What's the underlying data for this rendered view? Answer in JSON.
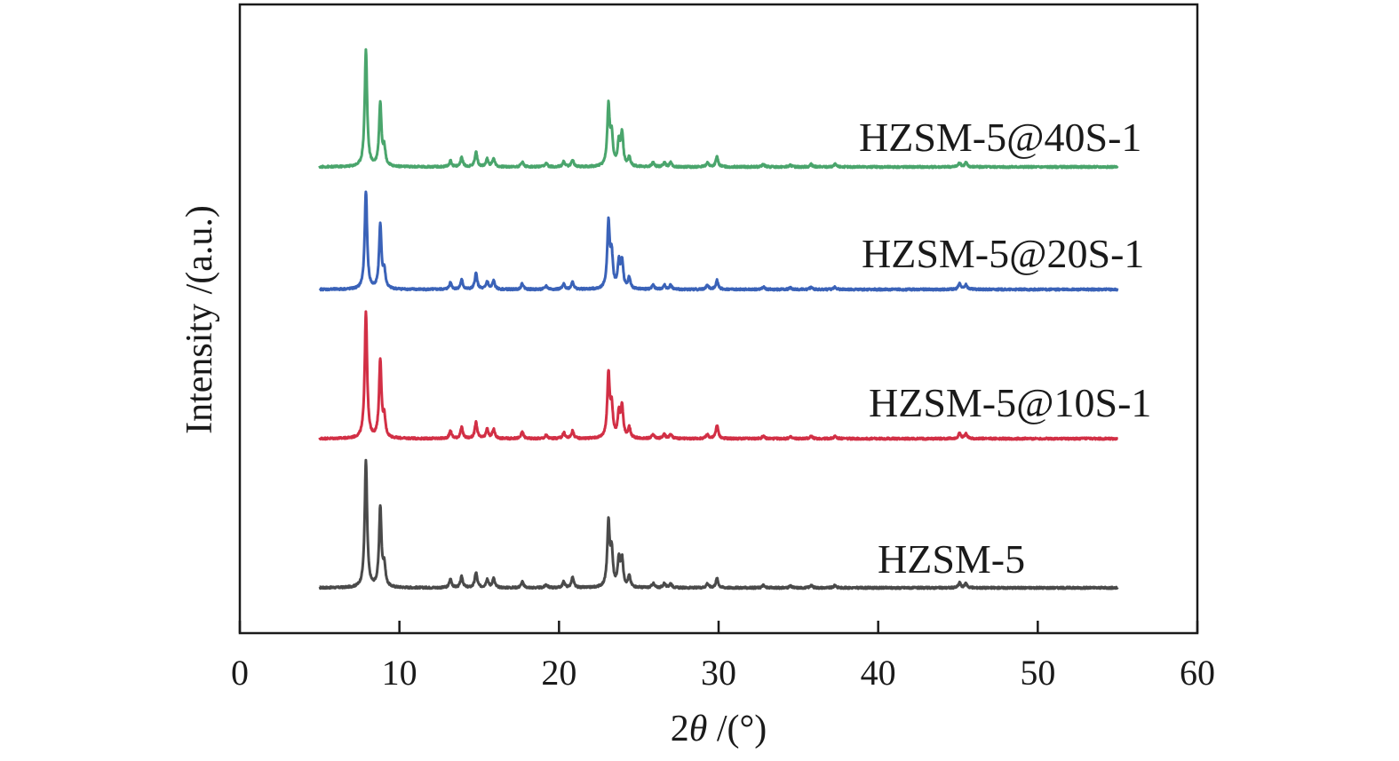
{
  "chart_data": {
    "type": "line",
    "title": "",
    "xlabel": "2θ /(°)",
    "xlabel_parts": {
      "prefix": "2",
      "symbol": "θ",
      "suffix": " /(°)"
    },
    "ylabel": "Intensity /(a.u.)",
    "xlim": [
      0,
      60
    ],
    "x_ticks": [
      0,
      10,
      20,
      30,
      40,
      50,
      60
    ],
    "x_tick_labels": [
      "0",
      "10",
      "20",
      "30",
      "40",
      "50",
      "60"
    ],
    "y_ticks": [],
    "x_range_data": [
      5,
      55
    ],
    "grid": false,
    "legend": "inline labels placed right of each curve",
    "series": [
      {
        "name": "HZSM-5",
        "color": "#4a4a4a",
        "offset": 0,
        "scale": 1.0,
        "peaks": [
          [
            7.9,
            150
          ],
          [
            8.8,
            94
          ],
          [
            9.05,
            24
          ],
          [
            13.2,
            10
          ],
          [
            13.9,
            13
          ],
          [
            14.8,
            18
          ],
          [
            15.5,
            10
          ],
          [
            15.9,
            11
          ],
          [
            17.7,
            7
          ],
          [
            19.2,
            4
          ],
          [
            20.3,
            7
          ],
          [
            20.85,
            12
          ],
          [
            23.1,
            75
          ],
          [
            23.3,
            40
          ],
          [
            23.75,
            32
          ],
          [
            23.95,
            32
          ],
          [
            24.4,
            13
          ],
          [
            25.9,
            5
          ],
          [
            26.6,
            5
          ],
          [
            27.0,
            5
          ],
          [
            29.3,
            5
          ],
          [
            29.9,
            11
          ],
          [
            32.8,
            3
          ],
          [
            34.5,
            2
          ],
          [
            35.8,
            3
          ],
          [
            37.3,
            3
          ],
          [
            45.1,
            6
          ],
          [
            45.5,
            5
          ]
        ]
      },
      {
        "name": "HZSM-5@10S-1",
        "color": "#d22f45",
        "offset": 168,
        "scale": 1.0,
        "peaks": [
          [
            7.9,
            150
          ],
          [
            8.8,
            92
          ],
          [
            9.05,
            22
          ],
          [
            13.2,
            9
          ],
          [
            13.9,
            13
          ],
          [
            14.8,
            19
          ],
          [
            15.5,
            11
          ],
          [
            15.9,
            11
          ],
          [
            17.7,
            8
          ],
          [
            19.2,
            4
          ],
          [
            20.3,
            7
          ],
          [
            20.85,
            9
          ],
          [
            23.1,
            75
          ],
          [
            23.3,
            35
          ],
          [
            23.75,
            28
          ],
          [
            23.95,
            36
          ],
          [
            24.4,
            13
          ],
          [
            25.9,
            5
          ],
          [
            26.6,
            5
          ],
          [
            27.0,
            5
          ],
          [
            29.3,
            5
          ],
          [
            29.9,
            16
          ],
          [
            32.8,
            3
          ],
          [
            34.5,
            2
          ],
          [
            35.8,
            3
          ],
          [
            37.3,
            3
          ],
          [
            45.1,
            6
          ],
          [
            45.5,
            6
          ]
        ]
      },
      {
        "name": "HZSM-5@20S-1",
        "color": "#3a62b8",
        "offset": 336,
        "scale": 1.0,
        "peaks": [
          [
            7.9,
            116
          ],
          [
            8.8,
            75
          ],
          [
            9.05,
            20
          ],
          [
            13.2,
            8
          ],
          [
            13.9,
            11
          ],
          [
            14.8,
            19
          ],
          [
            15.5,
            9
          ],
          [
            15.9,
            10
          ],
          [
            17.7,
            7
          ],
          [
            19.2,
            4
          ],
          [
            20.3,
            6
          ],
          [
            20.85,
            9
          ],
          [
            23.1,
            78
          ],
          [
            23.3,
            38
          ],
          [
            23.75,
            30
          ],
          [
            23.95,
            32
          ],
          [
            24.4,
            13
          ],
          [
            25.9,
            5
          ],
          [
            26.6,
            5
          ],
          [
            27.0,
            5
          ],
          [
            29.3,
            5
          ],
          [
            29.9,
            11
          ],
          [
            32.8,
            3
          ],
          [
            34.5,
            2
          ],
          [
            35.8,
            3
          ],
          [
            37.3,
            3
          ],
          [
            45.1,
            7
          ],
          [
            45.5,
            6
          ]
        ]
      },
      {
        "name": "HZSM-5@40S-1",
        "color": "#4aa56c",
        "offset": 474,
        "scale": 1.0,
        "peaks": [
          [
            7.9,
            138
          ],
          [
            8.8,
            74
          ],
          [
            9.05,
            20
          ],
          [
            13.2,
            7
          ],
          [
            13.9,
            11
          ],
          [
            14.8,
            18
          ],
          [
            15.5,
            9
          ],
          [
            15.9,
            10
          ],
          [
            17.7,
            6
          ],
          [
            19.2,
            4
          ],
          [
            20.3,
            6
          ],
          [
            20.85,
            8
          ],
          [
            23.1,
            71
          ],
          [
            23.3,
            35
          ],
          [
            23.75,
            28
          ],
          [
            23.95,
            38
          ],
          [
            24.4,
            11
          ],
          [
            25.9,
            5
          ],
          [
            26.6,
            5
          ],
          [
            27.0,
            5
          ],
          [
            29.3,
            5
          ],
          [
            29.9,
            12
          ],
          [
            32.8,
            3
          ],
          [
            34.5,
            2
          ],
          [
            35.8,
            3
          ],
          [
            37.3,
            3
          ],
          [
            45.1,
            5
          ],
          [
            45.5,
            5
          ]
        ]
      }
    ],
    "labels": [
      {
        "text": "HZSM-5@40S-1",
        "series": 3
      },
      {
        "text": "HZSM-5@20S-1",
        "series": 2
      },
      {
        "text": "HZSM-5@10S-1",
        "series": 1
      },
      {
        "text": "HZSM-5",
        "series": 0
      }
    ]
  }
}
